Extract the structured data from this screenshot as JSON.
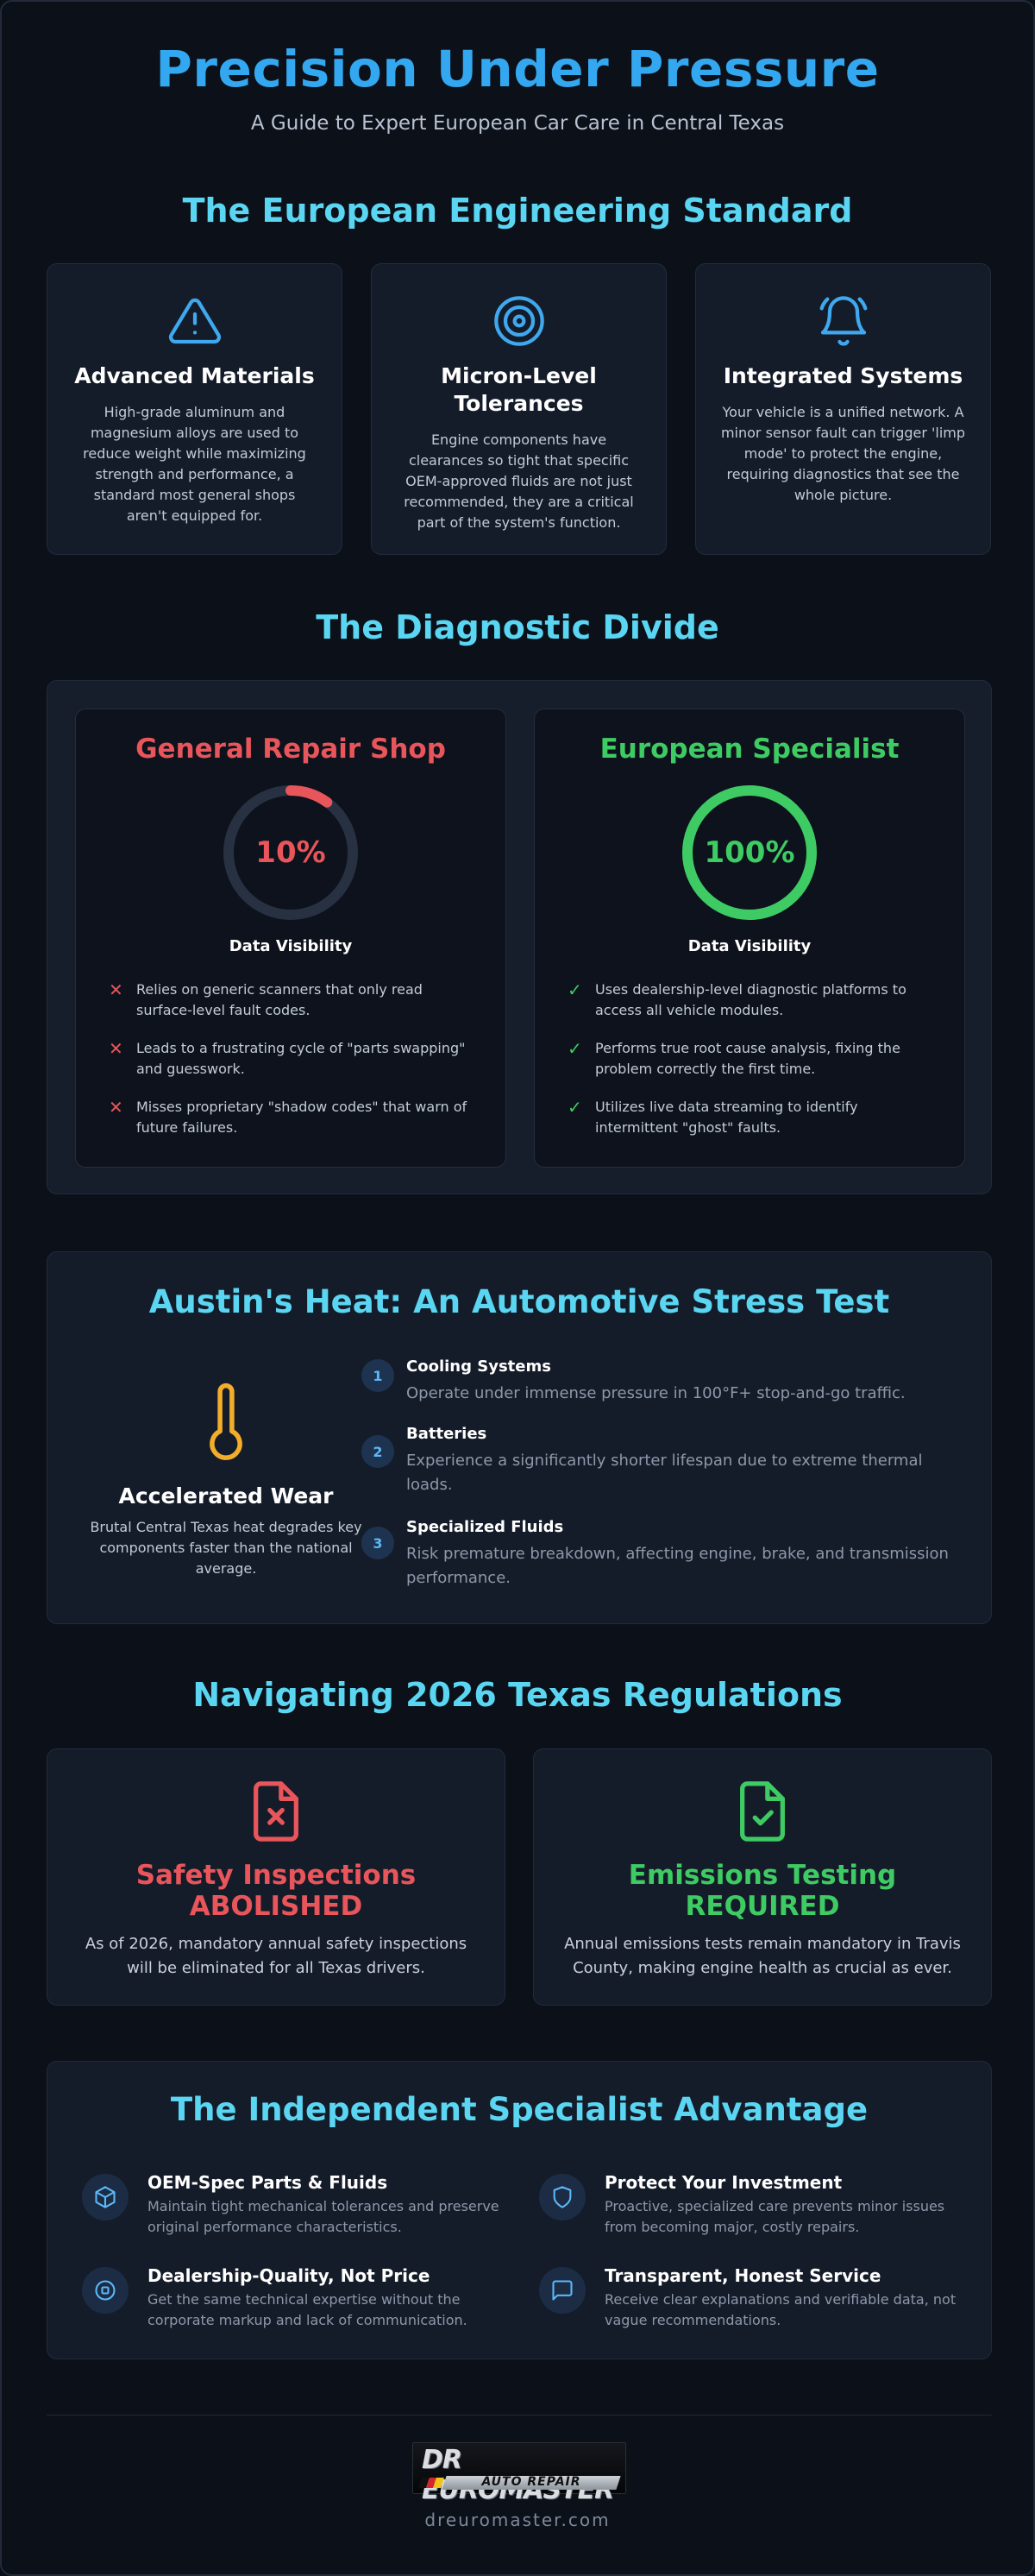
{
  "header": {
    "title": "Precision Under Pressure",
    "subtitle": "A Guide to Expert European Car Care in Central Texas"
  },
  "engineering": {
    "title": "The European Engineering Standard",
    "cards": [
      {
        "icon": "warning-triangle-icon",
        "title": "Advanced Materials",
        "text": "High-grade aluminum and magnesium alloys are used to reduce weight while maximizing strength and performance, a standard most general shops aren't equipped for."
      },
      {
        "icon": "target-icon",
        "title": "Micron-Level Tolerances",
        "text": "Engine components have clearances so tight that specific OEM-approved fluids are not just recommended, they are a critical part of the system's function."
      },
      {
        "icon": "bell-icon",
        "title": "Integrated Systems",
        "text": "Your vehicle is a unified network. A minor sensor fault can trigger 'limp mode' to protect the engine, requiring diagnostics that see the whole picture."
      }
    ]
  },
  "diagnostic": {
    "title": "The Diagnostic Divide",
    "general": {
      "heading": "General Repair Shop",
      "percent_label": "10%",
      "visibility": 0.1,
      "color": "#e8555a",
      "gauge_label": "Data Visibility",
      "items": [
        "Relies on generic scanners that only read surface-level fault codes.",
        "Leads to a frustrating cycle of \"parts swapping\" and guesswork.",
        "Misses proprietary \"shadow codes\" that warn of future failures."
      ]
    },
    "specialist": {
      "heading": "European Specialist",
      "percent_label": "100%",
      "visibility": 1.0,
      "color": "#3ecb63",
      "gauge_label": "Data Visibility",
      "items": [
        "Uses dealership-level diagnostic platforms to access all vehicle modules.",
        "Performs true root cause analysis, fixing the problem correctly the first time.",
        "Utilizes live data streaming to identify intermittent \"ghost\" faults."
      ]
    }
  },
  "heat": {
    "title": "Austin's Heat: An Automotive Stress Test",
    "icon": "thermometer-icon",
    "left_title": "Accelerated Wear",
    "left_text": "Brutal Central Texas heat degrades key components faster than the national average.",
    "items": [
      {
        "num": "1",
        "title": "Cooling Systems",
        "text": "Operate under immense pressure in 100°F+ stop-and-go traffic."
      },
      {
        "num": "2",
        "title": "Batteries",
        "text": "Experience a significantly shorter lifespan due to extreme thermal loads."
      },
      {
        "num": "3",
        "title": "Specialized Fluids",
        "text": "Risk premature breakdown, affecting engine, brake, and transmission performance."
      }
    ]
  },
  "regulations": {
    "title": "Navigating 2026 Texas Regulations",
    "cards": [
      {
        "icon": "file-x-icon",
        "title_line1": "Safety Inspections",
        "title_line2": "ABOLISHED",
        "color": "#e8555a",
        "text": "As of 2026, mandatory annual safety inspections will be eliminated for all Texas drivers."
      },
      {
        "icon": "file-check-icon",
        "title_line1": "Emissions Testing",
        "title_line2": "REQUIRED",
        "color": "#3ecb63",
        "text": "Annual emissions tests remain mandatory in Travis County, making engine health as crucial as ever."
      }
    ]
  },
  "advantage": {
    "title": "The Independent Specialist Advantage",
    "items": [
      {
        "icon": "cube-icon",
        "title": "OEM-Spec Parts & Fluids",
        "text": "Maintain tight mechanical tolerances and preserve original performance characteristics."
      },
      {
        "icon": "shield-icon",
        "title": "Protect Your Investment",
        "text": "Proactive, specialized care prevents minor issues from becoming major, costly repairs."
      },
      {
        "icon": "chip-icon",
        "title": "Dealership-Quality, Not Price",
        "text": "Get the same technical expertise without the corporate markup and lack of communication."
      },
      {
        "icon": "message-icon",
        "title": "Transparent, Honest Service",
        "text": "Receive clear explanations and verifiable data, not vague recommendations."
      }
    ]
  },
  "footer": {
    "logo_top": "DR EUROMASTER",
    "logo_bottom": "AUTO REPAIR",
    "website": "dreuromaster.com"
  },
  "colors": {
    "title_blue": "#33a8f0",
    "section_cyan": "#5ad6f2",
    "accent_red": "#e8555a",
    "accent_green": "#3ecb63",
    "accent_amber": "#f2ad2a"
  }
}
